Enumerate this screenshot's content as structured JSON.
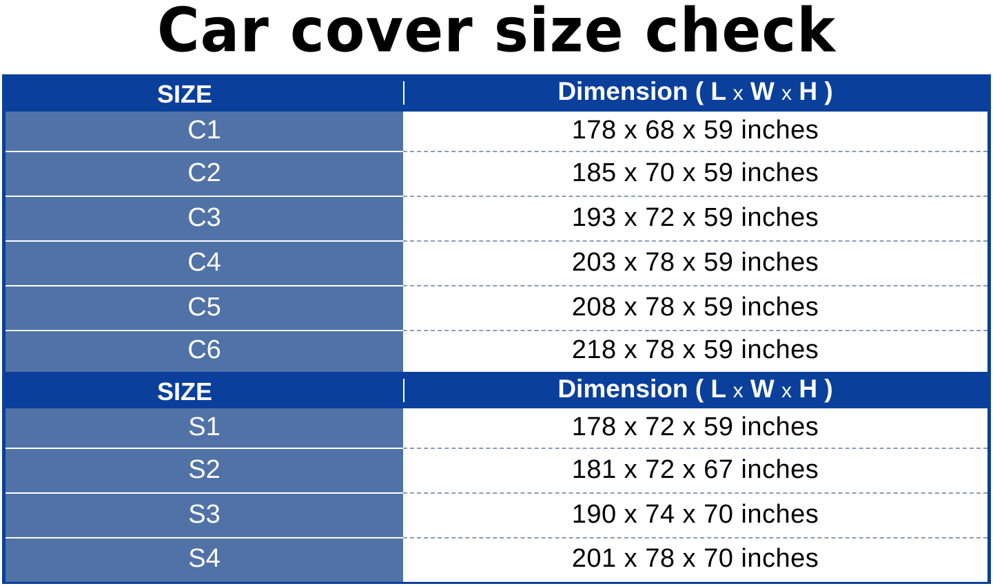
{
  "title": "Car cover size check",
  "header": {
    "size": "SIZE",
    "dimension_prefix": "Dimension ( L ",
    "x1": "x",
    "w": " W ",
    "x2": "x",
    "h": " H )"
  },
  "groups": [
    {
      "rows": [
        {
          "size": "C1",
          "dimension": "178 x 68 x 59 inches"
        },
        {
          "size": "C2",
          "dimension": "185 x 70 x 59 inches"
        },
        {
          "size": "C3",
          "dimension": "193 x 72 x 59 inches"
        },
        {
          "size": "C4",
          "dimension": "203 x 78 x 59 inches"
        },
        {
          "size": "C5",
          "dimension": "208 x 78 x 59 inches"
        },
        {
          "size": "C6",
          "dimension": "218 x 78 x 59 inches"
        }
      ]
    },
    {
      "rows": [
        {
          "size": "S1",
          "dimension": "178 x 72 x 59 inches"
        },
        {
          "size": "S2",
          "dimension": "181 x 72 x 67 inches"
        },
        {
          "size": "S3",
          "dimension": "190 x 74 x 70 inches"
        },
        {
          "size": "S4",
          "dimension": "201 x 78 x 70 inches"
        }
      ]
    }
  ],
  "colors": {
    "header_blue": "#0a3f9b",
    "size_cell": "#5072a7"
  }
}
